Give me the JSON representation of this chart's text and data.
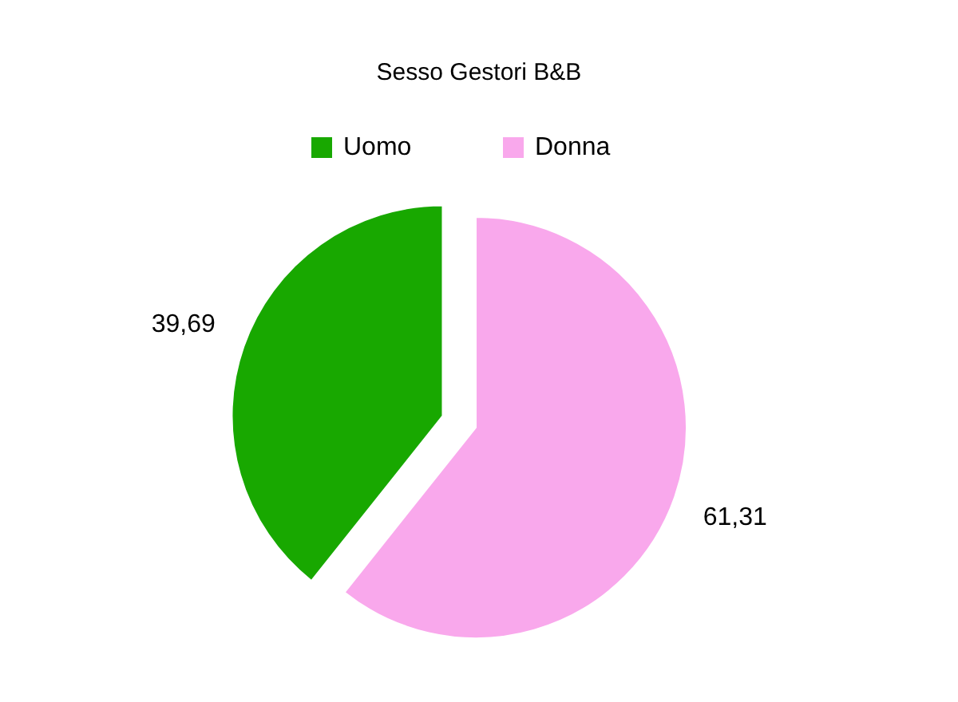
{
  "chart_data": {
    "type": "pie",
    "title": "Sesso Gestori B&B",
    "categories": [
      "Uomo",
      "Donna"
    ],
    "values": [
      39.69,
      61.31
    ],
    "value_labels": [
      "39,69",
      "61,31"
    ],
    "colors": [
      "#18a800",
      "#f9a8ec"
    ],
    "legend": "top"
  }
}
